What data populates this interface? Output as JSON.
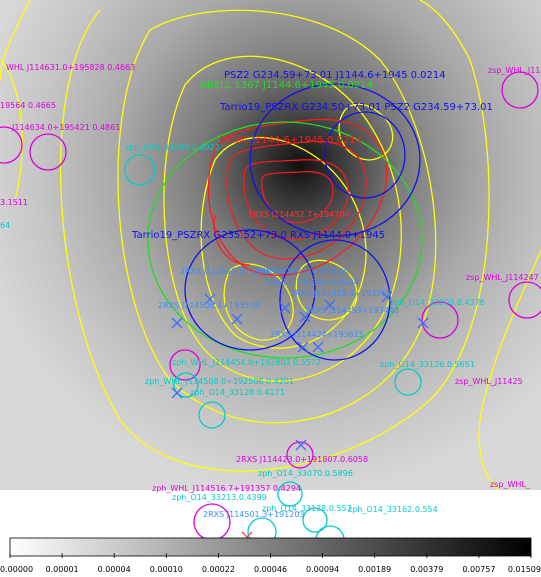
{
  "colors": {
    "magenta": "#dd00dd",
    "cyan": "#00cccc",
    "blue": "#1010ee",
    "green": "#22dd22",
    "yellow": "#ffff00",
    "red": "#ff1a1a",
    "sky": "#6f6f6f"
  },
  "labels": {
    "psz2": "PSZ2 G234.59+73.01 J1144.6+1945 0.0214",
    "abell": "ABELL 1367 J1144.6+1945 0.0214",
    "tarrio_top": "Tarrio19_PSZRX G234.50+73.01 PSZ2 G234.59+73.01",
    "mcxc": "MCXC J1144.6+1945 0.0214",
    "rxs_center": "1RXS J114452.7+194706",
    "tarrio_mid": "Tarrio19_PSZRX G235.52+73.0 RXS J1144.0+1945",
    "whl_topleft": "WHL J114631.0+195828 0.4663",
    "whl_topleft2": "19564 0.4665",
    "whl_topleft3": "J114634.0+195421 0.4861",
    "zph_topleft": "zph_O14_33286 0.4922",
    "whl_topright": "zsp_WHL_J1144",
    "small_left": "3.1511",
    "small_left2": "64",
    "rxs_mid1": "2RXS J114515.6+194019",
    "rxs_mid2": "2RXS J114437+194026",
    "rxs_mid3": "2RXS J114438+193924",
    "rxs_mid4": "2RXS J114506.1+193539",
    "rxs_mid5": "2RXS J114428.4+193758",
    "rxs_mid6": "2RXS J114453+193440",
    "rxs_mid7": "2RXS J114424+193615",
    "whl_right": "zsp_WHL_J114247",
    "zph_right": "zph_O14_33000.0.4376",
    "zph_mid1": "zph_WHL_J114454.0+192803 0.5572",
    "zph_mid2": "zph_WHL_J114508.0+192508 0.4201",
    "zph_mid3": "zph_O14_33128 0.4171",
    "zph_right2": "zph_O14_33126.0.5651",
    "whl_right2": "zsp_WHL_J11425",
    "rxs_lower": "2RXS J114423.0+191807.0.6058",
    "zph_lower": "zph_O14_33070.0.5896",
    "whl_lower": "zph_WHL_J114516.7+191357 0.4294",
    "zph_lower2": "zph_O14_33213.0.4399",
    "zph_lower3": "zph_O14_33162.0.554",
    "zph_lower4": "zph_O14_33128.0.557",
    "rxs_bottom": "2RXS J114501.3+191203",
    "whl_bottomright": "zsp_WHL_"
  },
  "colorbar": {
    "ticks": [
      "0.00000",
      "0.00001",
      "0.00004",
      "0.00010",
      "0.00022",
      "0.00046",
      "0.00094",
      "0.00189",
      "0.00379",
      "0.00757",
      "0.01509"
    ]
  }
}
